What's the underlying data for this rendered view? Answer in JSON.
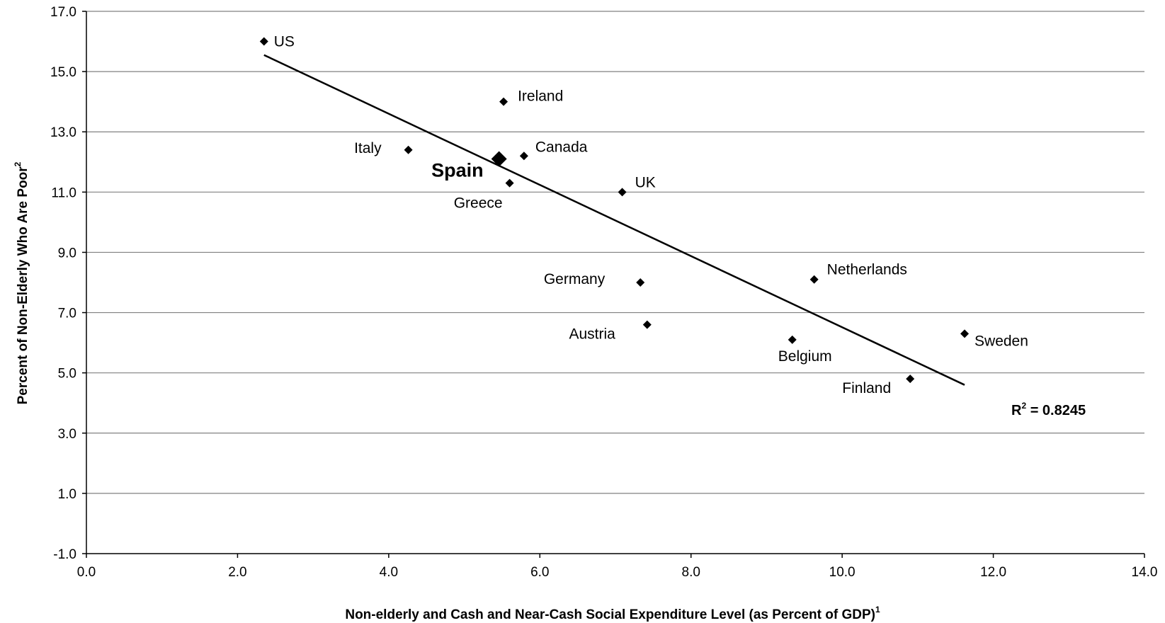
{
  "chart_data": {
    "type": "scatter",
    "xlabel": "Non-elderly and Cash and Near-Cash Social Expenditure Level (as Percent of GDP)",
    "xlabel_sup": "1",
    "ylabel": "Percent of Non-Elderly Who Are Poor",
    "ylabel_sup": "2",
    "xlim": [
      0.0,
      14.0
    ],
    "ylim": [
      -1.0,
      17.0
    ],
    "x_ticks": [
      "0.0",
      "2.0",
      "4.0",
      "6.0",
      "8.0",
      "10.0",
      "12.0",
      "14.0"
    ],
    "y_ticks": [
      "-1.0",
      "1.0",
      "3.0",
      "5.0",
      "7.0",
      "9.0",
      "11.0",
      "13.0",
      "15.0",
      "17.0"
    ],
    "grid": "horizontal",
    "points": [
      {
        "label": "US",
        "x": 2.35,
        "y": 16.0
      },
      {
        "label": "Ireland",
        "x": 5.52,
        "y": 14.0
      },
      {
        "label": "Italy",
        "x": 4.26,
        "y": 12.4
      },
      {
        "label": "Canada",
        "x": 5.79,
        "y": 12.2
      },
      {
        "label": "Spain",
        "x": 5.46,
        "y": 12.1,
        "highlight": true
      },
      {
        "label": "Greece",
        "x": 5.6,
        "y": 11.3
      },
      {
        "label": "UK",
        "x": 7.09,
        "y": 11.0
      },
      {
        "label": "Germany",
        "x": 7.33,
        "y": 8.0
      },
      {
        "label": "Netherlands",
        "x": 9.63,
        "y": 8.1
      },
      {
        "label": "Austria",
        "x": 7.42,
        "y": 6.6
      },
      {
        "label": "Belgium",
        "x": 9.34,
        "y": 6.1
      },
      {
        "label": "Sweden",
        "x": 11.62,
        "y": 6.3
      },
      {
        "label": "Finland",
        "x": 10.9,
        "y": 4.8
      }
    ],
    "trendline": {
      "x": [
        2.35,
        11.62
      ],
      "y": [
        15.55,
        4.6
      ]
    },
    "r_squared_label": "R",
    "r_squared_sup": "2",
    "r_squared_value": " = 0.8245",
    "colors": {
      "marker": "#000000",
      "trendline": "#000000",
      "grid": "#808080"
    }
  }
}
